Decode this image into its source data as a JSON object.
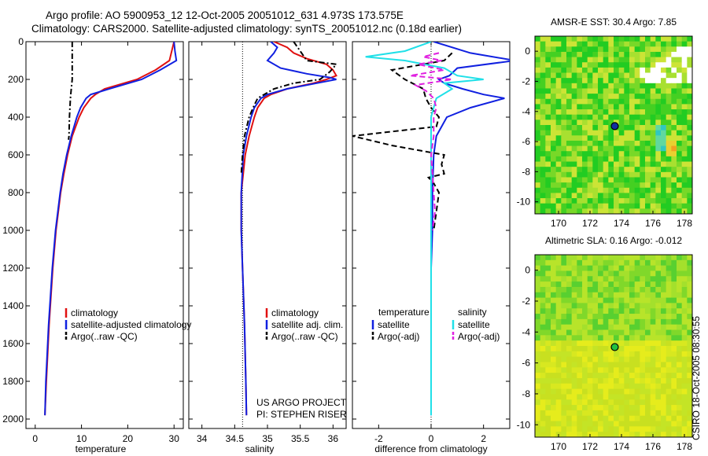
{
  "header": {
    "line1": "Argo profile: AO 5900953_12 12-Oct-2005 20051012_631 4.973S 173.575E",
    "line2": "Climatology: CARS2000. Satellite-adjusted climatology: synTS_20051012.nc (0.18d earlier)"
  },
  "side_note": "CSIRO 18-Oct-2005 08:30:55",
  "colors": {
    "red": "#e01010",
    "blue": "#1020e0",
    "black": "#000000",
    "cyan": "#20e0e8",
    "magenta": "#e020e0"
  },
  "chart_data": [
    {
      "type": "line",
      "xlabel": "temperature",
      "xlim": [
        -2,
        32
      ],
      "ylim": [
        0,
        2050
      ],
      "xticks": [
        0,
        10,
        20,
        30
      ],
      "yticks": [
        0,
        200,
        400,
        600,
        800,
        1000,
        1200,
        1400,
        1600,
        1800,
        2000
      ],
      "series": [
        {
          "name": "climatology",
          "color": "#e01010",
          "dash": "",
          "y": [
            0,
            50,
            100,
            150,
            200,
            250,
            280,
            300,
            350,
            400,
            500,
            600,
            700,
            800,
            1000,
            1200,
            1500,
            1800,
            1980
          ],
          "values": [
            30,
            29.5,
            29,
            26,
            22,
            15,
            13,
            12,
            10.5,
            9.5,
            8,
            7,
            6.2,
            5.5,
            4.5,
            3.8,
            3,
            2.4,
            2.1
          ]
        },
        {
          "name": "satellite-adjusted climatology",
          "color": "#1020e0",
          "dash": "",
          "y": [
            0,
            50,
            100,
            150,
            200,
            250,
            280,
            300,
            350,
            400,
            500,
            600,
            700,
            800,
            1000,
            1200,
            1500,
            1800,
            1980
          ],
          "values": [
            30,
            30.2,
            30.5,
            27,
            23,
            16,
            12,
            11,
            9.8,
            9,
            7.8,
            6.8,
            6,
            5.4,
            4.4,
            3.7,
            2.9,
            2.3,
            2.1
          ]
        },
        {
          "name": "Argo(..raw -QC)",
          "color": "#000000",
          "dash": "7 3 2 3",
          "y": [
            0,
            200,
            250,
            300,
            350,
            400,
            500,
            520
          ],
          "values": [
            8,
            8,
            7.8,
            7.6,
            7.5,
            7.4,
            7.3,
            7.2
          ]
        }
      ],
      "legend": [
        "climatology",
        "satellite-adjusted climatology",
        "Argo(..raw -QC)"
      ]
    },
    {
      "type": "line",
      "xlabel": "salinity",
      "xlim": [
        33.8,
        36.2
      ],
      "ylim": [
        0,
        2050
      ],
      "xticks": [
        34,
        34.5,
        35,
        35.5,
        36
      ],
      "xtick_labels": [
        "34",
        "34.5",
        "35",
        "35.5",
        "36"
      ],
      "series": [
        {
          "name": "climatology",
          "color": "#e01010",
          "dash": "",
          "y": [
            0,
            30,
            60,
            90,
            120,
            150,
            180,
            200,
            220,
            250,
            280,
            300,
            350,
            400,
            500,
            600,
            800,
            1000,
            1200,
            1500,
            1800,
            1980
          ],
          "values": [
            35.1,
            35.3,
            35.4,
            35.6,
            35.9,
            36.0,
            36.05,
            35.9,
            35.7,
            35.3,
            35.05,
            34.95,
            34.85,
            34.8,
            34.72,
            34.66,
            34.6,
            34.6,
            34.62,
            34.65,
            34.67,
            34.68
          ]
        },
        {
          "name": "satellite adj. clim.",
          "color": "#1020e0",
          "dash": "",
          "y": [
            0,
            30,
            60,
            100,
            140,
            170,
            190,
            200,
            220,
            250,
            280,
            300,
            350,
            400,
            500,
            600,
            800,
            1000,
            1200,
            1500,
            1800,
            1980
          ],
          "values": [
            35.05,
            35.15,
            35.1,
            35.0,
            35.2,
            35.6,
            35.95,
            36.05,
            35.75,
            35.3,
            35.0,
            34.9,
            34.8,
            34.75,
            34.68,
            34.63,
            34.6,
            34.6,
            34.62,
            34.65,
            34.67,
            34.68
          ]
        },
        {
          "name": "Argo(..raw -QC)",
          "color": "#000000",
          "dash": "7 3 2 3",
          "y": [
            0,
            100,
            120,
            160,
            200,
            220,
            250,
            280,
            300,
            350,
            400,
            500,
            600,
            700
          ],
          "values": [
            35.4,
            35.6,
            36.05,
            35.95,
            35.8,
            35.4,
            35.1,
            34.95,
            34.85,
            34.78,
            34.72,
            34.65,
            34.62,
            34.6
          ]
        }
      ],
      "legend": [
        "climatology",
        "satellite adj. clim.",
        "Argo(..raw -QC)"
      ],
      "annotation": [
        "US ARGO PROJECT",
        "PI: STEPHEN RISER"
      ]
    },
    {
      "type": "line",
      "xlabel": "difference from climatology",
      "xlim": [
        -3,
        3
      ],
      "ylim": [
        0,
        2050
      ],
      "xticks": [
        -2,
        0,
        2
      ],
      "series": [
        {
          "name": "temperature satellite",
          "color": "#1020e0",
          "dash": "",
          "y": [
            0,
            60,
            100,
            140,
            180,
            200,
            220,
            250,
            280,
            300,
            350,
            400,
            500,
            600,
            800,
            1000,
            1200,
            1500,
            1800,
            1980
          ],
          "values": [
            0.1,
            1.5,
            3.2,
            1.0,
            0.7,
            0.3,
            0.5,
            1.2,
            2.0,
            2.8,
            1.5,
            0.6,
            0.2,
            0.1,
            0.05,
            0.05,
            0,
            0,
            0,
            0
          ]
        },
        {
          "name": "temperature Argo(-adj)",
          "color": "#000000",
          "dash": "7 4",
          "y": [
            60,
            100,
            150,
            200,
            250,
            300,
            350,
            400,
            450,
            500,
            550,
            600,
            650,
            700,
            720,
            750,
            800,
            900,
            1000
          ],
          "values": [
            0.8,
            0.5,
            -1.5,
            -1.0,
            -0.3,
            -0.2,
            0,
            0.3,
            0.2,
            -3.0,
            -1.5,
            0.5,
            0.4,
            0.5,
            -0.1,
            0.1,
            0.3,
            0.2,
            0.1
          ]
        },
        {
          "name": "salinity satellite",
          "color": "#20e0e8",
          "dash": "",
          "y": [
            0,
            50,
            80,
            100,
            140,
            180,
            200,
            220,
            250,
            300,
            350,
            400,
            600,
            800,
            1000,
            1200,
            1500,
            1800,
            1980
          ],
          "values": [
            0,
            -1.0,
            -2.5,
            -1.0,
            0.5,
            1.0,
            2.0,
            0.5,
            0.8,
            0.2,
            0.1,
            0,
            0,
            0,
            0,
            0,
            0,
            0,
            0
          ]
        },
        {
          "name": "salinity Argo(-adj)",
          "color": "#e020e0",
          "dash": "7 4",
          "y": [
            60,
            80,
            100,
            120,
            150,
            180,
            200,
            230,
            260,
            300,
            350,
            400,
            500,
            600,
            700,
            800,
            900,
            1000
          ],
          "values": [
            0.3,
            -0.3,
            0.4,
            -0.5,
            0.5,
            -0.8,
            0.8,
            -0.6,
            -0.2,
            0.1,
            0.2,
            0.1,
            0.1,
            0,
            0.05,
            0.1,
            0.15,
            0.05
          ]
        }
      ],
      "legend_titles": [
        "temperature",
        "salinity"
      ],
      "legend": [
        "satellite",
        "Argo(-adj)",
        "satellite",
        "Argo(-adj)"
      ]
    },
    {
      "type": "heatmap",
      "title": "AMSR-E SST: 30.4 Argo: 7.85",
      "xlim": [
        168.5,
        178.5
      ],
      "ylim": [
        -10.8,
        1.0
      ],
      "xticks": [
        170,
        172,
        174,
        176,
        178
      ],
      "yticks": [
        0,
        -2,
        -4,
        -6,
        -8,
        -10
      ],
      "marker": {
        "lon": 173.575,
        "lat": -4.973
      }
    },
    {
      "type": "heatmap",
      "title": "Altimetric SLA: 0.16 Argo: -0.012",
      "xlim": [
        168.5,
        178.5
      ],
      "ylim": [
        -10.8,
        1.0
      ],
      "xticks": [
        170,
        172,
        174,
        176,
        178
      ],
      "yticks": [
        0,
        -2,
        -4,
        -6,
        -8,
        -10
      ],
      "marker": {
        "lon": 173.575,
        "lat": -4.973
      }
    }
  ]
}
